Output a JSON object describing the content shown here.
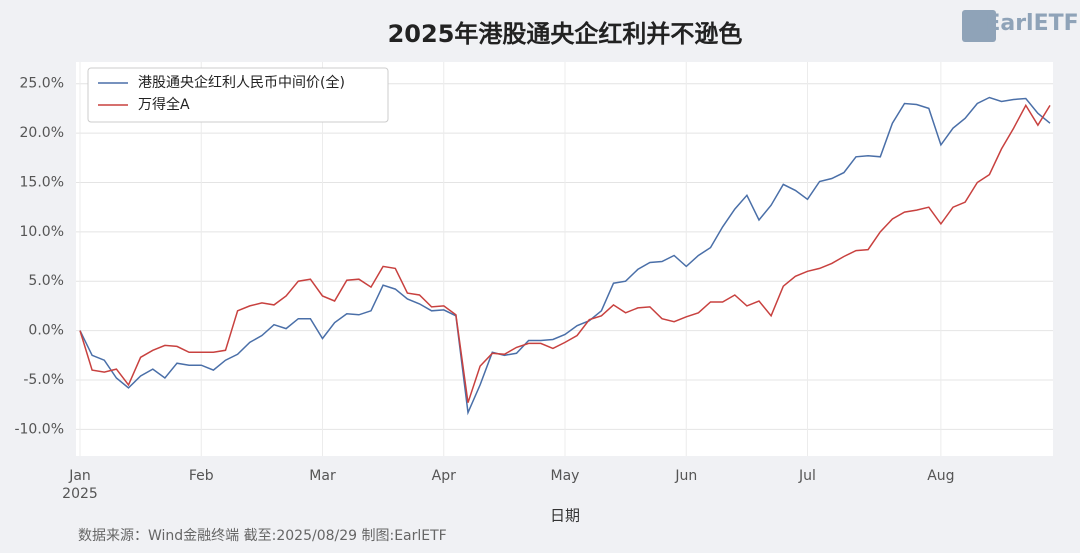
{
  "chart_data": {
    "type": "line",
    "title": "2025年港股通央企红利并不逊色",
    "logo": "EarlETF",
    "x_label": "日期",
    "source": "数据来源：Wind金融终端 截至:2025/08/29 制图:EarlETF",
    "categories": [
      "Jan\n2025",
      null,
      null,
      null,
      null,
      null,
      null,
      null,
      null,
      null,
      "Feb",
      null,
      null,
      null,
      null,
      null,
      null,
      null,
      null,
      null,
      "Mar",
      null,
      null,
      null,
      null,
      null,
      null,
      null,
      null,
      null,
      "Apr",
      null,
      null,
      null,
      null,
      null,
      null,
      null,
      null,
      null,
      "May",
      null,
      null,
      null,
      null,
      null,
      null,
      null,
      null,
      null,
      "Jun",
      null,
      null,
      null,
      null,
      null,
      null,
      null,
      null,
      null,
      "Jul",
      null,
      null,
      null,
      null,
      null,
      null,
      null,
      null,
      null,
      null,
      "Aug",
      null,
      null,
      null,
      null,
      null,
      null,
      null,
      null,
      null
    ],
    "series": [
      {
        "name": "港股通央企红利人民币中间价(全)",
        "color": "#4a6fa8",
        "values": [
          0,
          -2.5,
          -3.0,
          -4.8,
          -5.8,
          -4.6,
          -3.9,
          -4.8,
          -3.3,
          -3.5,
          -3.5,
          -4.0,
          -3.0,
          -2.4,
          -1.2,
          -0.5,
          0.6,
          0.2,
          1.2,
          1.2,
          -0.8,
          0.8,
          1.7,
          1.6,
          2.0,
          4.6,
          4.2,
          3.2,
          2.7,
          2.0,
          2.1,
          1.5,
          -8.3,
          -5.5,
          -2.2,
          -2.5,
          -2.3,
          -1.0,
          -1.0,
          -0.9,
          -0.4,
          0.5,
          1.0,
          2.0,
          4.8,
          5.0,
          6.2,
          6.9,
          7.0,
          7.6,
          6.5,
          7.6,
          8.4,
          10.5,
          12.3,
          13.7,
          11.2,
          12.7,
          14.8,
          14.2,
          13.3,
          15.1,
          15.4,
          16.0,
          17.6,
          17.7,
          17.6,
          21.0,
          23.0,
          22.9,
          22.5,
          18.8,
          20.5,
          21.5,
          23.0,
          23.6,
          23.2,
          23.4,
          23.5,
          22.0,
          21.0
        ]
      },
      {
        "name": "万得全A",
        "color": "#c8413f",
        "values": [
          0,
          -4.0,
          -4.2,
          -3.9,
          -5.5,
          -2.7,
          -2.0,
          -1.5,
          -1.6,
          -2.2,
          -2.2,
          -2.2,
          -2.0,
          2.0,
          2.5,
          2.8,
          2.6,
          3.5,
          5.0,
          5.2,
          3.5,
          3.0,
          5.1,
          5.2,
          4.4,
          6.5,
          6.3,
          3.8,
          3.6,
          2.4,
          2.5,
          1.6,
          -7.3,
          -3.6,
          -2.3,
          -2.4,
          -1.7,
          -1.3,
          -1.3,
          -1.8,
          -1.2,
          -0.5,
          1.1,
          1.5,
          2.6,
          1.8,
          2.3,
          2.4,
          1.2,
          0.9,
          1.4,
          1.8,
          2.9,
          2.9,
          3.6,
          2.5,
          3.0,
          1.5,
          4.5,
          5.5,
          6.0,
          6.3,
          6.8,
          7.5,
          8.1,
          8.2,
          10.0,
          11.3,
          12.0,
          12.2,
          12.5,
          10.8,
          12.5,
          13.0,
          15.0,
          15.8,
          18.4,
          20.5,
          22.8,
          20.8,
          22.8
        ]
      }
    ],
    "ylim": [
      -12.7,
      27.2
    ],
    "yticks": [
      {
        "value": -10,
        "label": "-10.0%"
      },
      {
        "value": -5,
        "label": "-5.0%"
      },
      {
        "value": 0,
        "label": "0.0%"
      },
      {
        "value": 5,
        "label": "5.0%"
      },
      {
        "value": 10,
        "label": "10.0%"
      },
      {
        "value": 15,
        "label": "15.0%"
      },
      {
        "value": 20,
        "label": "20.0%"
      },
      {
        "value": 25,
        "label": "25.0%"
      }
    ],
    "grid": true,
    "legend": "upper left"
  }
}
